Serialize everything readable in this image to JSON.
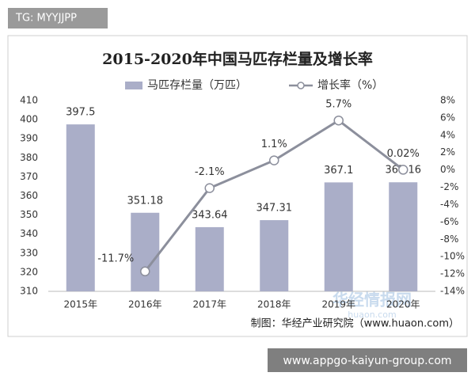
{
  "overlay": {
    "tag": "TG: MYYJJPP",
    "url": "www.appgo-kaiyun-group.com"
  },
  "chart_data": {
    "type": "bar-line",
    "title": "2015-2020年中国马匹存栏量及增长率",
    "categories": [
      "2015年",
      "2016年",
      "2017年",
      "2018年",
      "2019年",
      "2020年"
    ],
    "series": [
      {
        "name": "马匹存栏量（万匹）",
        "type": "bar",
        "color": "#aaaec8",
        "values": [
          397.5,
          351.18,
          343.64,
          347.31,
          367.1,
          367.16
        ]
      },
      {
        "name": "增长率（%）",
        "type": "line",
        "axis": "y2",
        "color": "#8c8f9c",
        "values": [
          null,
          -11.7,
          -2.1,
          1.1,
          5.7,
          0.02
        ],
        "value_labels": [
          null,
          "-11.7%",
          "-2.1%",
          "1.1%",
          "5.7%",
          "0.02%"
        ]
      }
    ],
    "ylim": [
      310,
      410
    ],
    "yticks": [
      310,
      320,
      330,
      340,
      350,
      360,
      370,
      380,
      390,
      400,
      410
    ],
    "y2lim": [
      -14,
      8
    ],
    "y2ticks": [
      {
        "value": -14,
        "label": "-14%"
      },
      {
        "value": -12,
        "label": "-12%"
      },
      {
        "value": -10,
        "label": "-10%"
      },
      {
        "value": -8,
        "label": "-8%"
      },
      {
        "value": -6,
        "label": "-6%"
      },
      {
        "value": -4,
        "label": "-4%"
      },
      {
        "value": -2,
        "label": "-2%"
      },
      {
        "value": 0,
        "label": "0%"
      },
      {
        "value": 2,
        "label": "2%"
      },
      {
        "value": 4,
        "label": "4%"
      },
      {
        "value": 6,
        "label": "6%"
      },
      {
        "value": 8,
        "label": "8%"
      }
    ],
    "legend": "top",
    "source": "制图：华经产业研究院（www.huaon.com）",
    "watermark": "华经情报网",
    "watermark_sub": "huaon.com"
  }
}
